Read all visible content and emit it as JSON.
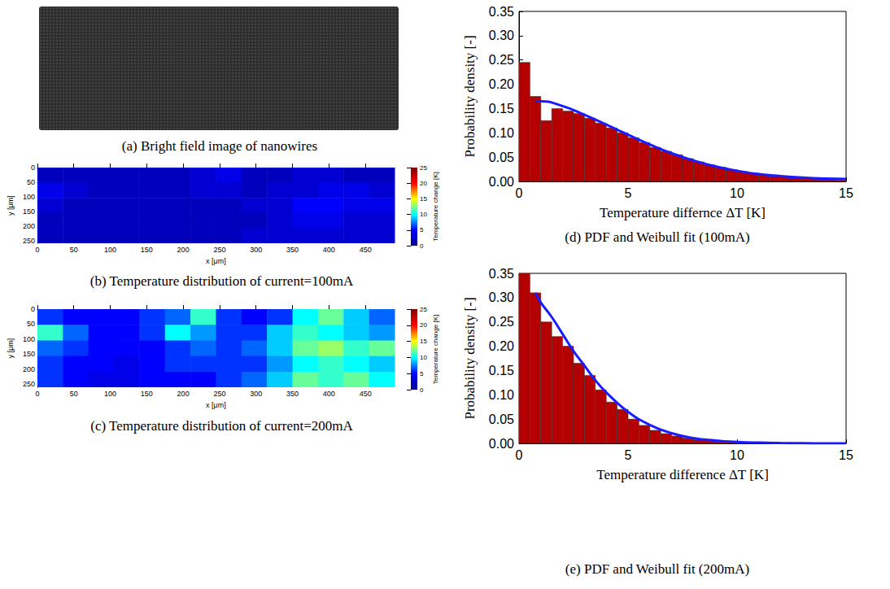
{
  "chart_data": [
    {
      "type": "image",
      "caption": "(a) Bright field image of nanowires"
    },
    {
      "type": "heatmap",
      "caption": "(b) Temperature distribution of current=100mA",
      "xlabel": "x [μm]",
      "ylabel": "y [μm]",
      "xlim": [
        0,
        490
      ],
      "ylim": [
        0,
        260
      ],
      "xticks": [
        0,
        50,
        100,
        150,
        200,
        250,
        300,
        350,
        400,
        450
      ],
      "yticks": [
        0,
        50,
        100,
        150,
        200,
        250
      ],
      "x_edges": [
        0,
        35,
        70,
        105,
        140,
        175,
        210,
        245,
        280,
        315,
        350,
        385,
        420,
        455,
        490
      ],
      "y_edges": [
        0,
        52,
        104,
        156,
        208,
        260
      ],
      "values": [
        [
          2,
          2,
          2,
          2,
          2,
          2,
          3,
          4,
          2,
          2,
          3,
          3,
          2,
          2
        ],
        [
          4,
          3,
          2,
          2,
          2,
          2,
          3,
          3,
          2,
          3,
          3,
          4,
          4,
          3
        ],
        [
          3,
          2,
          2,
          2,
          2,
          2,
          2,
          2,
          3,
          3,
          5,
          5,
          4,
          4
        ],
        [
          2,
          2,
          2,
          2,
          2,
          2,
          2,
          2,
          2,
          3,
          4,
          4,
          3,
          3
        ],
        [
          2,
          2,
          2,
          2,
          2,
          2,
          2,
          2,
          3,
          3,
          3,
          3,
          3,
          3
        ]
      ],
      "colorbar": {
        "label": "Temperature change [K]",
        "range": [
          0,
          25
        ],
        "ticks": [
          0,
          5,
          10,
          15,
          20,
          25
        ],
        "colors": [
          "#00008f",
          "#0000ff",
          "#00ffff",
          "#ffff00",
          "#ff0000",
          "#800000"
        ]
      }
    },
    {
      "type": "heatmap",
      "caption": "(c) Temperature distribution of current=200mA",
      "xlabel": "x [μm]",
      "ylabel": "y [μm]",
      "xlim": [
        0,
        490
      ],
      "ylim": [
        0,
        260
      ],
      "xticks": [
        0,
        50,
        100,
        150,
        200,
        250,
        300,
        350,
        400,
        450
      ],
      "yticks": [
        0,
        50,
        100,
        150,
        200,
        250
      ],
      "x_edges": [
        0,
        35,
        70,
        105,
        140,
        175,
        210,
        245,
        280,
        315,
        350,
        385,
        420,
        455,
        490
      ],
      "y_edges": [
        0,
        52,
        104,
        156,
        208,
        260
      ],
      "values": [
        [
          6,
          5,
          5,
          5,
          6,
          7,
          11,
          6,
          5,
          6,
          10,
          12,
          9,
          7
        ],
        [
          11,
          7,
          5,
          5,
          6,
          10,
          8,
          6,
          6,
          9,
          11,
          10,
          9,
          8
        ],
        [
          7,
          6,
          5,
          5,
          5,
          6,
          7,
          6,
          7,
          9,
          12,
          13,
          11,
          12
        ],
        [
          6,
          5,
          5,
          4,
          5,
          6,
          6,
          6,
          6,
          8,
          10,
          11,
          10,
          9
        ],
        [
          6,
          5,
          4,
          4,
          5,
          5,
          5,
          6,
          7,
          9,
          12,
          11,
          12,
          10
        ]
      ],
      "colorbar": {
        "label": "Temperature change [K]",
        "range": [
          0,
          25
        ],
        "ticks": [
          0,
          5,
          10,
          15,
          20,
          25
        ],
        "colors": [
          "#00008f",
          "#0000ff",
          "#00ffff",
          "#ffff00",
          "#ff0000",
          "#800000"
        ]
      }
    },
    {
      "type": "histogram",
      "caption": "(d) PDF and Weibull fit (100mA)",
      "xlabel": "Temperature differnce ΔT [K]",
      "ylabel": "Probability density [-]",
      "xlim": [
        0,
        15
      ],
      "ylim": [
        0,
        0.35
      ],
      "xticks": [
        0,
        5,
        10,
        15
      ],
      "yticks": [
        {
          "value": 0,
          "label": "0.00"
        },
        {
          "value": 0.05,
          "label": "0.05"
        },
        {
          "value": 0.1,
          "label": "0.10"
        },
        {
          "value": 0.15,
          "label": "0.15"
        },
        {
          "value": 0.2,
          "label": "0.20"
        },
        {
          "value": 0.25,
          "label": "0.25"
        },
        {
          "value": 0.3,
          "label": "0.30"
        },
        {
          "value": 0.35,
          "label": "0.35"
        }
      ],
      "bins": [
        0,
        0.5,
        1,
        1.5,
        2,
        2.5,
        3,
        3.5,
        4,
        4.5,
        5,
        5.5,
        6,
        6.5,
        7,
        7.5,
        8,
        8.5,
        9,
        9.5,
        10,
        10.5,
        11,
        11.5,
        12,
        12.5,
        13,
        13.5,
        14,
        14.5,
        15
      ],
      "values": [
        0.245,
        0.175,
        0.125,
        0.15,
        0.145,
        0.14,
        0.13,
        0.12,
        0.11,
        0.1,
        0.09,
        0.08,
        0.07,
        0.062,
        0.055,
        0.047,
        0.04,
        0.034,
        0.029,
        0.024,
        0.02,
        0.017,
        0.014,
        0.011,
        0.009,
        0.007,
        0.006,
        0.005,
        0.004,
        0.003
      ],
      "color": "#b40000",
      "fit": {
        "type": "line",
        "color": "#1a1aff",
        "x": [
          0.75,
          1,
          2,
          3,
          4,
          5,
          6,
          7,
          8,
          9,
          10,
          11,
          12,
          13,
          14,
          15
        ],
        "values": [
          0.165,
          0.165,
          0.155,
          0.137,
          0.117,
          0.096,
          0.076,
          0.058,
          0.043,
          0.031,
          0.022,
          0.015,
          0.011,
          0.008,
          0.006,
          0.005
        ]
      }
    },
    {
      "type": "histogram",
      "caption": "(e) PDF and Weibull fit (200mA)",
      "xlabel": "Temperature difference ΔT [K]",
      "ylabel": "Probability density [-]",
      "xlim": [
        0,
        15
      ],
      "ylim": [
        0,
        0.35
      ],
      "xticks": [
        0,
        5,
        10,
        15
      ],
      "yticks": [
        {
          "value": 0,
          "label": "0.00"
        },
        {
          "value": 0.05,
          "label": "0.05"
        },
        {
          "value": 0.1,
          "label": "0.10"
        },
        {
          "value": 0.15,
          "label": "0.15"
        },
        {
          "value": 0.2,
          "label": "0.20"
        },
        {
          "value": 0.25,
          "label": "0.25"
        },
        {
          "value": 0.3,
          "label": "0.30"
        },
        {
          "value": 0.35,
          "label": "0.35"
        }
      ],
      "bins": [
        0,
        0.5,
        1,
        1.5,
        2,
        2.5,
        3,
        3.5,
        4,
        4.5,
        5,
        5.5,
        6,
        6.5,
        7,
        7.5,
        8,
        8.5,
        9,
        9.5,
        10,
        10.5,
        11,
        11.5,
        12,
        12.5,
        13,
        13.5,
        14,
        14.5,
        15
      ],
      "values": [
        0.35,
        0.31,
        0.25,
        0.22,
        0.2,
        0.165,
        0.14,
        0.11,
        0.085,
        0.07,
        0.05,
        0.037,
        0.027,
        0.02,
        0.015,
        0.011,
        0.008,
        0.006,
        0.004,
        0.003,
        0.002,
        0.0015,
        0.001,
        0.001,
        0.0008,
        0.0006,
        0.0005,
        0.0004,
        0.0003,
        0.0002
      ],
      "color": "#b40000",
      "fit": {
        "type": "line",
        "color": "#1a1aff",
        "x": [
          0.75,
          1,
          1.5,
          2,
          2.5,
          3,
          3.5,
          4,
          5,
          6,
          7,
          8,
          9,
          10,
          11,
          12,
          13,
          14,
          15
        ],
        "values": [
          0.31,
          0.29,
          0.26,
          0.225,
          0.19,
          0.16,
          0.13,
          0.105,
          0.065,
          0.038,
          0.021,
          0.011,
          0.006,
          0.003,
          0.0015,
          0.0007,
          0.0003,
          0.0001,
          0
        ]
      }
    }
  ]
}
